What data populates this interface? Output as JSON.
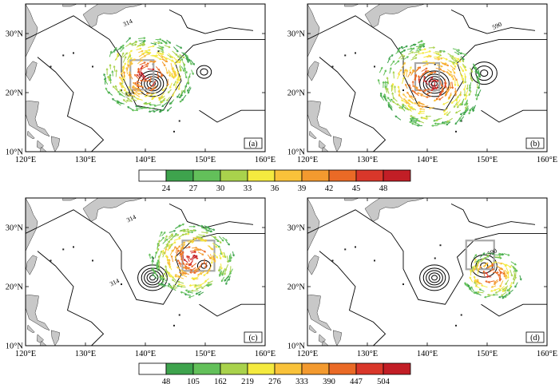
{
  "panels": [
    {
      "label": "(a)",
      "contour_labels": [
        "314",
        "314"
      ]
    },
    {
      "label": "(b)",
      "contour_labels": [
        "590"
      ]
    },
    {
      "label": "(c)",
      "contour_labels": [
        "314",
        "314"
      ]
    },
    {
      "label": "(d)",
      "contour_labels": [
        "590"
      ]
    }
  ],
  "x_ticks": [
    "120°E",
    "130°E",
    "140°E",
    "150°E",
    "160°E"
  ],
  "y_ticks": [
    "10°N",
    "20°N",
    "30°N"
  ],
  "colorbars": [
    {
      "labels": [
        "24",
        "27",
        "30",
        "33",
        "36",
        "39",
        "42",
        "45",
        "48"
      ]
    },
    {
      "labels": [
        "48",
        "105",
        "162",
        "219",
        "276",
        "333",
        "390",
        "447",
        "504"
      ]
    }
  ],
  "colorbar_colors": [
    "#ffffff",
    "#3ea34d",
    "#63c05a",
    "#a9d24c",
    "#f4ea3f",
    "#f9c23a",
    "#f39a2f",
    "#ea6a26",
    "#d9372a",
    "#c21e26"
  ],
  "colors": {
    "land": "#c8c8c8",
    "contour": "#000000",
    "box": "#a8a8a8"
  }
}
